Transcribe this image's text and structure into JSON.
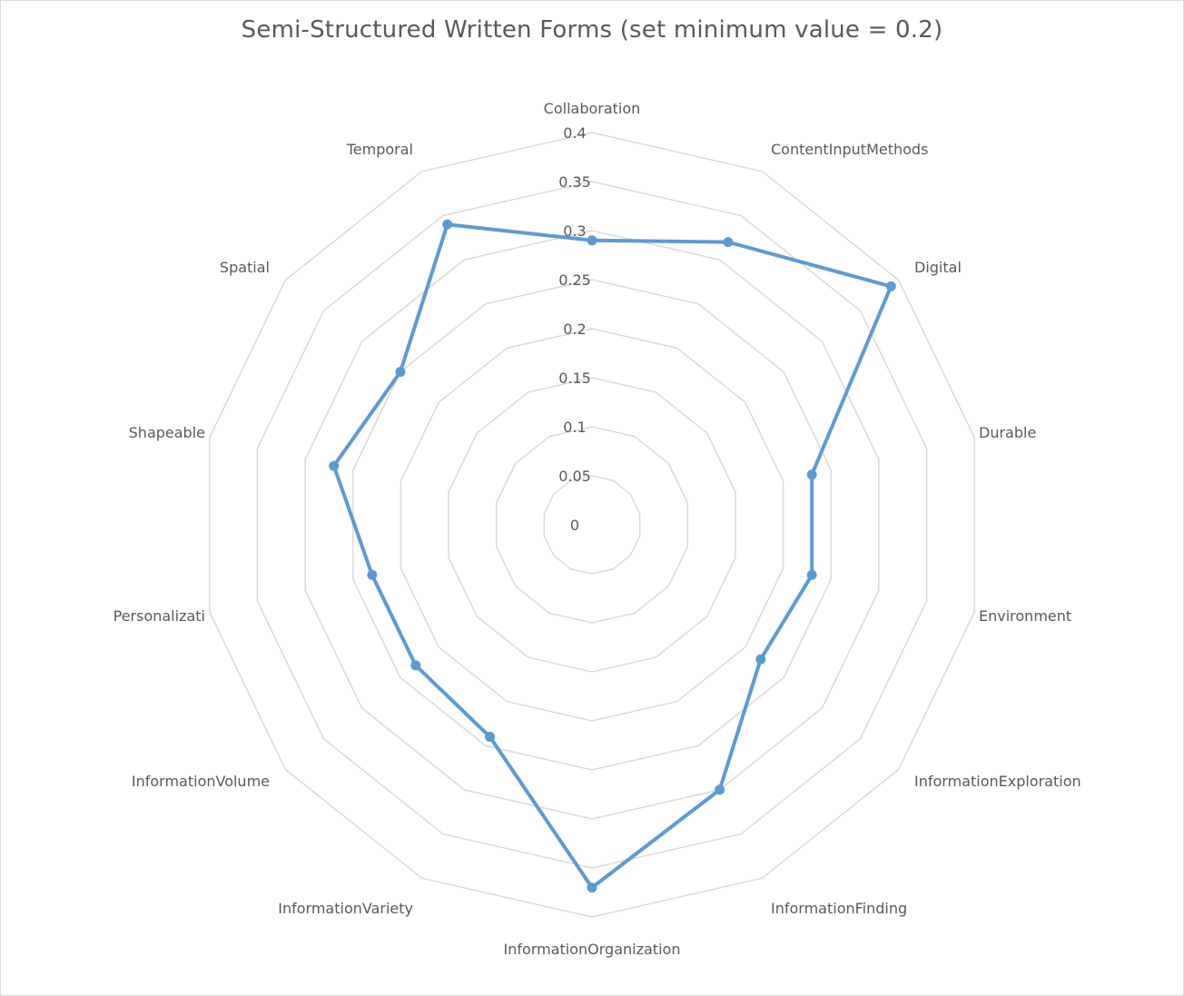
{
  "chart_data": {
    "type": "radar",
    "title": "Semi-Structured Written Forms (set minimum value = 0.2)",
    "categories": [
      "Collaboration",
      "ContentInputMethods",
      "Digital",
      "Durable",
      "Environment",
      "InformationExploration",
      "InformationFinding",
      "InformationOrganization",
      "InformationVariety",
      "InformationVolume",
      "Personalizati",
      "Shapeable",
      "Spatial",
      "Temporal"
    ],
    "series": [
      {
        "values": [
          0.29,
          0.32,
          0.39,
          0.23,
          0.23,
          0.22,
          0.3,
          0.37,
          0.24,
          0.23,
          0.23,
          0.27,
          0.25,
          0.34
        ]
      }
    ],
    "rlim": [
      0,
      0.4
    ],
    "ticks": [
      "0",
      "0.05",
      "0.1",
      "0.15",
      "0.2",
      "0.25",
      "0.3",
      "0.35",
      "0.4"
    ],
    "tick_values": [
      0,
      0.05,
      0.1,
      0.15,
      0.2,
      0.25,
      0.3,
      0.35,
      0.4
    ],
    "grid": true,
    "colors": {
      "series": "#5b9bd5",
      "grid": "#d9d9d9",
      "text": "#595959"
    }
  }
}
